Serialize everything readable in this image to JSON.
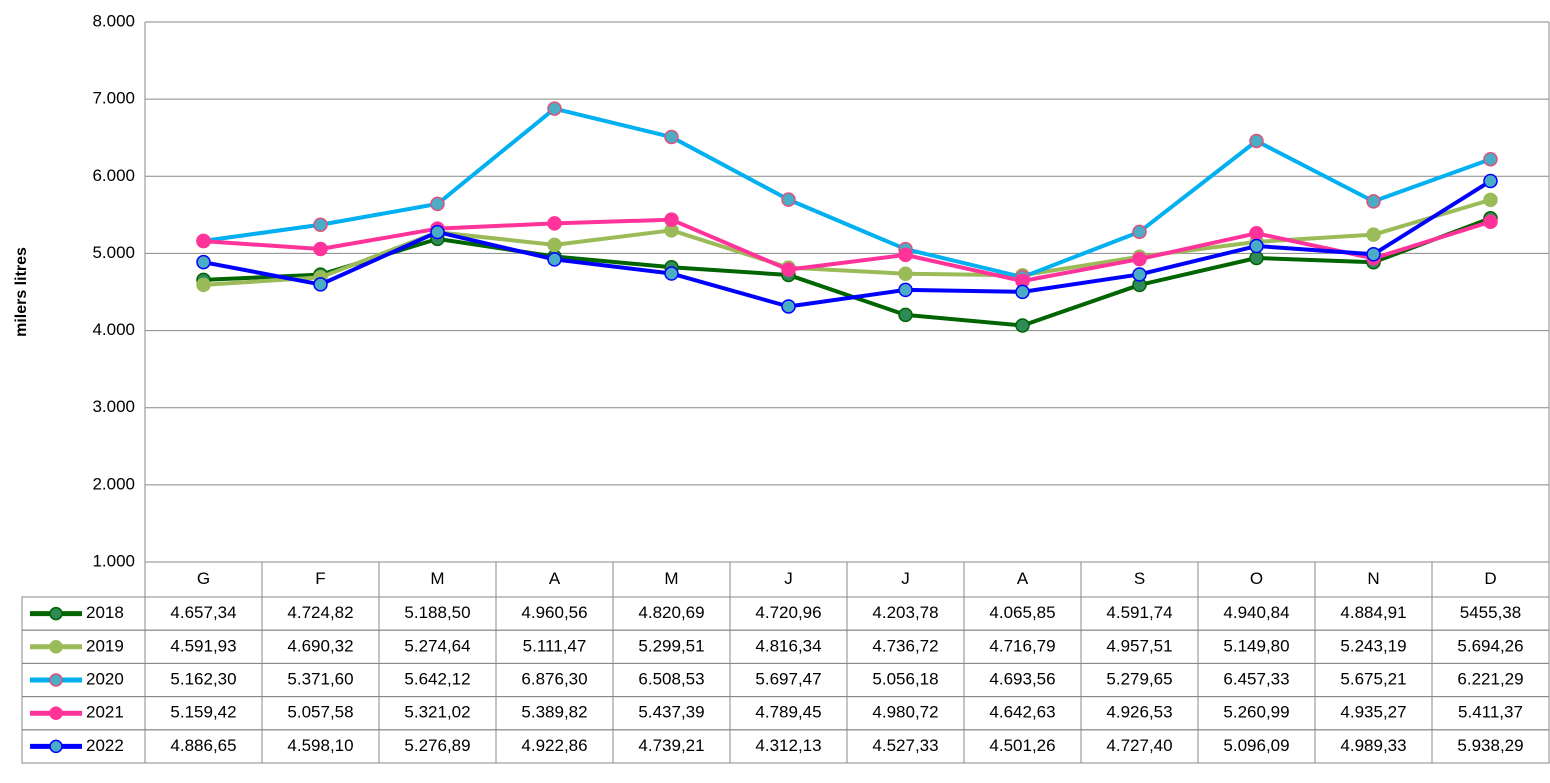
{
  "chart_data": {
    "type": "line",
    "y_label": "milers litres",
    "categories": [
      "G",
      "F",
      "M",
      "A",
      "M",
      "J",
      "J",
      "A",
      "S",
      "O",
      "N",
      "D"
    ],
    "ylim": [
      1000,
      8000
    ],
    "yticks": [
      {
        "value": 1000,
        "label": "1.000"
      },
      {
        "value": 2000,
        "label": "2.000"
      },
      {
        "value": 3000,
        "label": "3.000"
      },
      {
        "value": 4000,
        "label": "4.000"
      },
      {
        "value": 5000,
        "label": "5.000"
      },
      {
        "value": 6000,
        "label": "6.000"
      },
      {
        "value": 7000,
        "label": "7.000"
      },
      {
        "value": 8000,
        "label": "8.000"
      }
    ],
    "grid": true,
    "series": [
      {
        "name": "2018",
        "color": "#006400",
        "marker_color": "#2e8b57",
        "marker_edge": "#006400",
        "values": [
          4657.34,
          4724.82,
          5188.5,
          4960.56,
          4820.69,
          4720.96,
          4203.78,
          4065.85,
          4591.74,
          4940.84,
          4884.91,
          5455.38
        ],
        "value_labels": [
          "4.657,34",
          "4.724,82",
          "5.188,50",
          "4.960,56",
          "4.820,69",
          "4.720,96",
          "4.203,78",
          "4.065,85",
          "4.591,74",
          "4.940,84",
          "4.884,91",
          "5455,38"
        ]
      },
      {
        "name": "2019",
        "color": "#9bbb59",
        "marker_color": "#9bbb59",
        "marker_edge": "#9bbb59",
        "values": [
          4591.93,
          4690.32,
          5274.64,
          5111.47,
          5299.51,
          4816.34,
          4736.72,
          4716.79,
          4957.51,
          5149.8,
          5243.19,
          5694.26
        ],
        "value_labels": [
          "4.591,93",
          "4.690,32",
          "5.274,64",
          "5.111,47",
          "5.299,51",
          "4.816,34",
          "4.736,72",
          "4.716,79",
          "4.957,51",
          "5.149,80",
          "5.243,19",
          "5.694,26"
        ]
      },
      {
        "name": "2020",
        "color": "#00b0f0",
        "marker_color": "#4bacc6",
        "marker_edge": "#e0507a",
        "values": [
          5162.3,
          5371.6,
          5642.12,
          6876.3,
          6508.53,
          5697.47,
          5056.18,
          4693.56,
          5279.65,
          6457.33,
          5675.21,
          6221.29
        ],
        "value_labels": [
          "5.162,30",
          "5.371,60",
          "5.642,12",
          "6.876,30",
          "6.508,53",
          "5.697,47",
          "5.056,18",
          "4.693,56",
          "5.279,65",
          "6.457,33",
          "5.675,21",
          "6.221,29"
        ]
      },
      {
        "name": "2021",
        "color": "#ff3399",
        "marker_color": "#ff3399",
        "marker_edge": "#ff3399",
        "values": [
          5159.42,
          5057.58,
          5321.02,
          5389.82,
          5437.39,
          4789.45,
          4980.72,
          4642.63,
          4926.53,
          5260.99,
          4935.27,
          5411.37
        ],
        "value_labels": [
          "5.159,42",
          "5.057,58",
          "5.321,02",
          "5.389,82",
          "5.437,39",
          "4.789,45",
          "4.980,72",
          "4.642,63",
          "4.926,53",
          "5.260,99",
          "4.935,27",
          "5.411,37"
        ]
      },
      {
        "name": "2022",
        "color": "#0000ff",
        "marker_color": "#4bacc6",
        "marker_edge": "#0000ff",
        "values": [
          4886.65,
          4598.1,
          5276.89,
          4922.86,
          4739.21,
          4312.13,
          4527.33,
          4501.26,
          4727.4,
          5096.09,
          4989.33,
          5938.29
        ],
        "value_labels": [
          "4.886,65",
          "4.598,10",
          "5.276,89",
          "4.922,86",
          "4.739,21",
          "4.312,13",
          "4.527,33",
          "4.501,26",
          "4.727,40",
          "5.096,09",
          "4.989,33",
          "5.938,29"
        ]
      }
    ]
  }
}
